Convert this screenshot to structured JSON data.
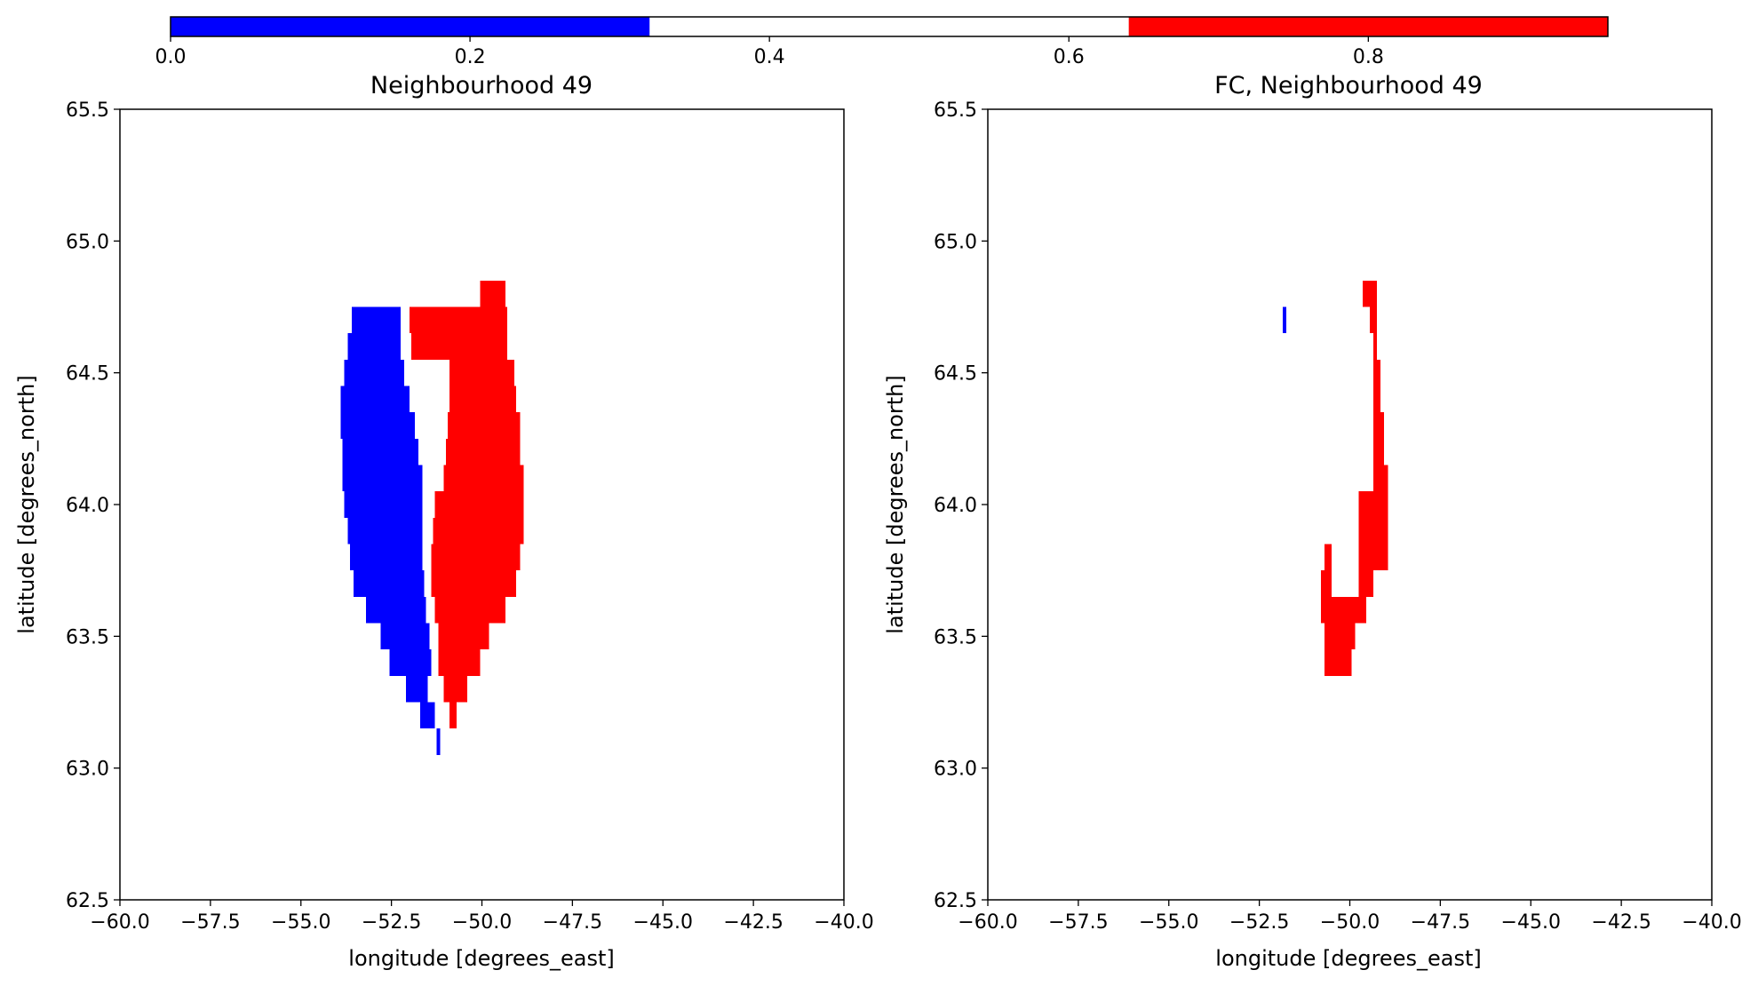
{
  "colorbar": {
    "ticks": [
      0.0,
      0.2,
      0.4,
      0.6,
      0.8
    ],
    "tick_labels": [
      "0.0",
      "0.2",
      "0.4",
      "0.6",
      "0.8"
    ],
    "range": [
      0.0,
      0.96
    ],
    "segments": [
      {
        "from": 0.0,
        "to": 0.32,
        "color": "#0000ff"
      },
      {
        "from": 0.32,
        "to": 0.64,
        "color": "#ffffff"
      },
      {
        "from": 0.64,
        "to": 0.96,
        "color": "#ff0000"
      }
    ]
  },
  "chart_data": [
    {
      "type": "heatmap",
      "title": "Neighbourhood 49",
      "xlabel": "longitude [degrees_east]",
      "ylabel": "latitude [degrees_north]",
      "xlim": [
        -60.0,
        -40.0
      ],
      "ylim": [
        62.5,
        65.5
      ],
      "xticks": [
        "−60.0",
        "−57.5",
        "−55.0",
        "−52.5",
        "−50.0",
        "−47.5",
        "−45.0",
        "−42.5",
        "−40.0"
      ],
      "yticks": [
        "62.5",
        "63.0",
        "63.5",
        "64.0",
        "64.5",
        "65.0",
        "65.5"
      ],
      "cells": [
        {
          "lat": [
            64.65,
            64.75
          ],
          "lon": [
            -53.6,
            -52.25
          ],
          "color": "#0000ff"
        },
        {
          "lat": [
            64.55,
            64.65
          ],
          "lon": [
            -53.7,
            -52.25
          ],
          "color": "#0000ff"
        },
        {
          "lat": [
            64.45,
            64.55
          ],
          "lon": [
            -53.8,
            -52.15
          ],
          "color": "#0000ff"
        },
        {
          "lat": [
            64.35,
            64.45
          ],
          "lon": [
            -53.9,
            -52.0
          ],
          "color": "#0000ff"
        },
        {
          "lat": [
            64.25,
            64.35
          ],
          "lon": [
            -53.9,
            -51.85
          ],
          "color": "#0000ff"
        },
        {
          "lat": [
            64.15,
            64.25
          ],
          "lon": [
            -53.85,
            -51.75
          ],
          "color": "#0000ff"
        },
        {
          "lat": [
            64.05,
            64.15
          ],
          "lon": [
            -53.85,
            -51.65
          ],
          "color": "#0000ff"
        },
        {
          "lat": [
            63.95,
            64.05
          ],
          "lon": [
            -53.8,
            -51.65
          ],
          "color": "#0000ff"
        },
        {
          "lat": [
            63.85,
            63.95
          ],
          "lon": [
            -53.7,
            -51.65
          ],
          "color": "#0000ff"
        },
        {
          "lat": [
            63.75,
            63.85
          ],
          "lon": [
            -53.65,
            -51.65
          ],
          "color": "#0000ff"
        },
        {
          "lat": [
            63.65,
            63.75
          ],
          "lon": [
            -53.55,
            -51.6
          ],
          "color": "#0000ff"
        },
        {
          "lat": [
            63.55,
            63.65
          ],
          "lon": [
            -53.2,
            -51.55
          ],
          "color": "#0000ff"
        },
        {
          "lat": [
            63.45,
            63.55
          ],
          "lon": [
            -52.8,
            -51.45
          ],
          "color": "#0000ff"
        },
        {
          "lat": [
            63.35,
            63.45
          ],
          "lon": [
            -52.55,
            -51.4
          ],
          "color": "#0000ff"
        },
        {
          "lat": [
            63.25,
            63.35
          ],
          "lon": [
            -52.1,
            -51.5
          ],
          "color": "#0000ff"
        },
        {
          "lat": [
            63.15,
            63.25
          ],
          "lon": [
            -51.7,
            -51.3
          ],
          "color": "#0000ff"
        },
        {
          "lat": [
            63.05,
            63.15
          ],
          "lon": [
            -51.25,
            -51.15
          ],
          "color": "#0000ff"
        },
        {
          "lat": [
            64.75,
            64.85
          ],
          "lon": [
            -50.05,
            -49.35
          ],
          "color": "#ff0000"
        },
        {
          "lat": [
            64.65,
            64.75
          ],
          "lon": [
            -52.0,
            -49.3
          ],
          "color": "#ff0000"
        },
        {
          "lat": [
            64.55,
            64.65
          ],
          "lon": [
            -51.95,
            -49.3
          ],
          "color": "#ff0000"
        },
        {
          "lat": [
            64.45,
            64.55
          ],
          "lon": [
            -50.9,
            -49.1
          ],
          "color": "#ff0000"
        },
        {
          "lat": [
            64.35,
            64.45
          ],
          "lon": [
            -50.9,
            -49.05
          ],
          "color": "#ff0000"
        },
        {
          "lat": [
            64.25,
            64.35
          ],
          "lon": [
            -50.95,
            -48.95
          ],
          "color": "#ff0000"
        },
        {
          "lat": [
            64.15,
            64.25
          ],
          "lon": [
            -51.0,
            -48.95
          ],
          "color": "#ff0000"
        },
        {
          "lat": [
            64.05,
            64.15
          ],
          "lon": [
            -51.05,
            -48.85
          ],
          "color": "#ff0000"
        },
        {
          "lat": [
            63.95,
            64.05
          ],
          "lon": [
            -51.3,
            -48.85
          ],
          "color": "#ff0000"
        },
        {
          "lat": [
            63.85,
            63.95
          ],
          "lon": [
            -51.35,
            -48.85
          ],
          "color": "#ff0000"
        },
        {
          "lat": [
            63.75,
            63.85
          ],
          "lon": [
            -51.4,
            -48.95
          ],
          "color": "#ff0000"
        },
        {
          "lat": [
            63.65,
            63.75
          ],
          "lon": [
            -51.4,
            -49.05
          ],
          "color": "#ff0000"
        },
        {
          "lat": [
            63.55,
            63.65
          ],
          "lon": [
            -51.3,
            -49.35
          ],
          "color": "#ff0000"
        },
        {
          "lat": [
            63.45,
            63.55
          ],
          "lon": [
            -51.2,
            -49.8
          ],
          "color": "#ff0000"
        },
        {
          "lat": [
            63.35,
            63.45
          ],
          "lon": [
            -51.2,
            -50.05
          ],
          "color": "#ff0000"
        },
        {
          "lat": [
            63.25,
            63.35
          ],
          "lon": [
            -51.05,
            -50.4
          ],
          "color": "#ff0000"
        },
        {
          "lat": [
            63.15,
            63.25
          ],
          "lon": [
            -50.9,
            -50.7
          ],
          "color": "#ff0000"
        }
      ]
    },
    {
      "type": "heatmap",
      "title": "FC, Neighbourhood 49",
      "xlabel": "longitude [degrees_east]",
      "ylabel": "latitude [degrees_north]",
      "xlim": [
        -60.0,
        -40.0
      ],
      "ylim": [
        62.5,
        65.5
      ],
      "xticks": [
        "−60.0",
        "−57.5",
        "−55.0",
        "−52.5",
        "−50.0",
        "−47.5",
        "−45.0",
        "−42.5",
        "−40.0"
      ],
      "yticks": [
        "62.5",
        "63.0",
        "63.5",
        "64.0",
        "64.5",
        "65.0",
        "65.5"
      ],
      "cells": [
        {
          "lat": [
            64.65,
            64.75
          ],
          "lon": [
            -51.85,
            -51.75
          ],
          "color": "#0000ff"
        },
        {
          "lat": [
            64.75,
            64.85
          ],
          "lon": [
            -49.65,
            -49.25
          ],
          "color": "#ff0000"
        },
        {
          "lat": [
            64.65,
            64.75
          ],
          "lon": [
            -49.45,
            -49.25
          ],
          "color": "#ff0000"
        },
        {
          "lat": [
            64.55,
            64.65
          ],
          "lon": [
            -49.35,
            -49.25
          ],
          "color": "#ff0000"
        },
        {
          "lat": [
            64.45,
            64.55
          ],
          "lon": [
            -49.35,
            -49.15
          ],
          "color": "#ff0000"
        },
        {
          "lat": [
            64.35,
            64.45
          ],
          "lon": [
            -49.35,
            -49.15
          ],
          "color": "#ff0000"
        },
        {
          "lat": [
            64.25,
            64.35
          ],
          "lon": [
            -49.35,
            -49.05
          ],
          "color": "#ff0000"
        },
        {
          "lat": [
            64.15,
            64.25
          ],
          "lon": [
            -49.35,
            -49.05
          ],
          "color": "#ff0000"
        },
        {
          "lat": [
            64.05,
            64.15
          ],
          "lon": [
            -49.35,
            -48.95
          ],
          "color": "#ff0000"
        },
        {
          "lat": [
            63.95,
            64.05
          ],
          "lon": [
            -49.75,
            -48.95
          ],
          "color": "#ff0000"
        },
        {
          "lat": [
            63.85,
            63.95
          ],
          "lon": [
            -49.75,
            -48.95
          ],
          "color": "#ff0000"
        },
        {
          "lat": [
            63.75,
            63.85
          ],
          "lon": [
            -50.7,
            -50.5
          ],
          "color": "#ff0000"
        },
        {
          "lat": [
            63.75,
            63.85
          ],
          "lon": [
            -49.75,
            -48.95
          ],
          "color": "#ff0000"
        },
        {
          "lat": [
            63.65,
            63.75
          ],
          "lon": [
            -50.8,
            -50.5
          ],
          "color": "#ff0000"
        },
        {
          "lat": [
            63.65,
            63.75
          ],
          "lon": [
            -49.75,
            -49.35
          ],
          "color": "#ff0000"
        },
        {
          "lat": [
            63.55,
            63.65
          ],
          "lon": [
            -50.8,
            -49.55
          ],
          "color": "#ff0000"
        },
        {
          "lat": [
            63.45,
            63.55
          ],
          "lon": [
            -50.7,
            -49.85
          ],
          "color": "#ff0000"
        },
        {
          "lat": [
            63.35,
            63.45
          ],
          "lon": [
            -50.7,
            -49.95
          ],
          "color": "#ff0000"
        }
      ]
    }
  ]
}
